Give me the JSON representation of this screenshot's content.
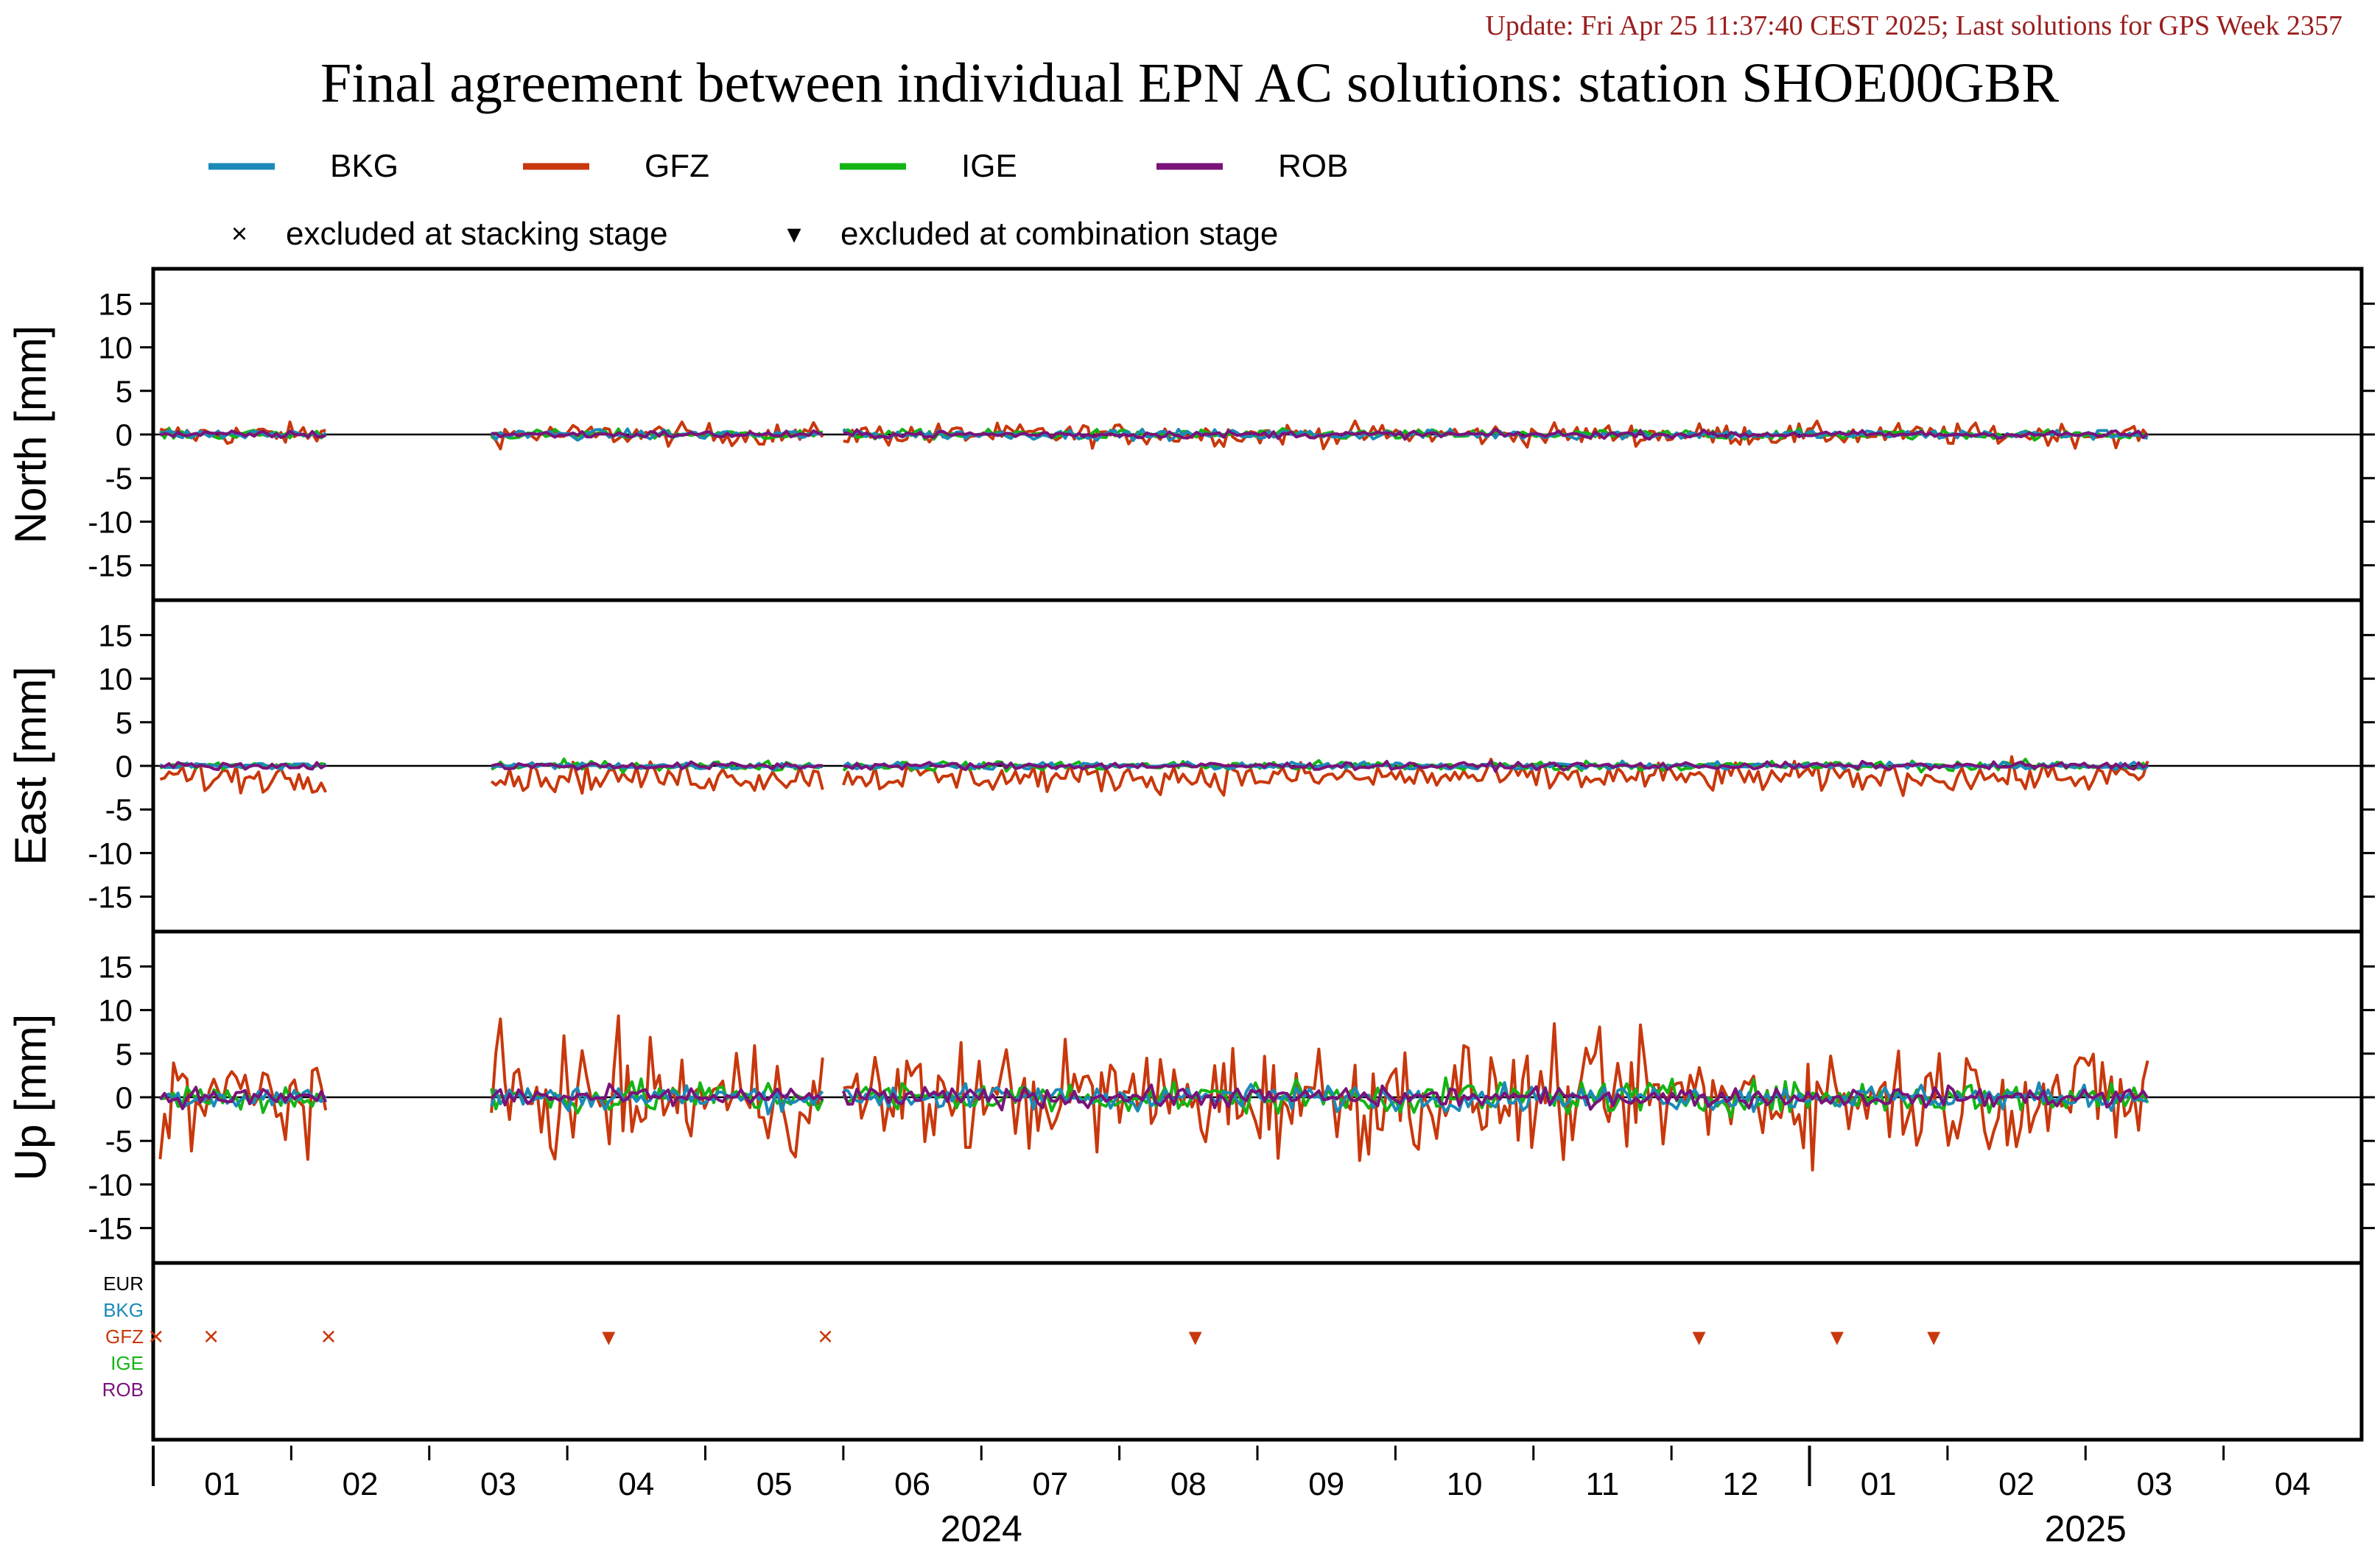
{
  "update_text": "Update: Fri Apr 25 11:37:40 CEST 2025; Last solutions for GPS Week 2357",
  "title": "Final agreement between individual EPN AC solutions: station SHOE00GBR",
  "legend": {
    "series": [
      {
        "name": "BKG",
        "color": "#1b8ab8"
      },
      {
        "name": "GFZ",
        "color": "#c8380c"
      },
      {
        "name": "IGE",
        "color": "#14b414"
      },
      {
        "name": "ROB",
        "color": "#7a127a"
      }
    ],
    "markers": [
      {
        "symbol": "×",
        "label": "excluded at stacking stage"
      },
      {
        "symbol": "▾",
        "label": "excluded at combination stage"
      }
    ]
  },
  "chart_data": {
    "type": "line",
    "x_axis": {
      "month_labels": [
        "01",
        "02",
        "03",
        "04",
        "05",
        "06",
        "07",
        "08",
        "09",
        "10",
        "11",
        "12",
        "01",
        "02",
        "03",
        "04"
      ],
      "year_labels": [
        "2024",
        "2025"
      ],
      "range_months": [
        0,
        16
      ],
      "start": "2024-01"
    },
    "y_ticks": [
      15,
      10,
      5,
      0,
      -5,
      -10,
      -15
    ],
    "ylim": [
      -19,
      19
    ],
    "panels": [
      {
        "ylabel": "North [mm]",
        "amp": {
          "BKG": 0.4,
          "GFZ": 0.9,
          "IGE": 0.4,
          "ROB": 0.3
        }
      },
      {
        "ylabel": "East [mm]",
        "amp": {
          "BKG": 0.3,
          "GFZ": 1.2,
          "IGE": 0.4,
          "ROB": 0.3
        },
        "gfz_bias": -1.3
      },
      {
        "ylabel": "Up [mm]",
        "amp": {
          "BKG": 1.0,
          "GFZ": 4.5,
          "IGE": 1.3,
          "ROB": 0.8
        }
      }
    ],
    "data_segments_months": [
      [
        0.05,
        1.25
      ],
      [
        2.45,
        4.85
      ],
      [
        5.0,
        14.45
      ]
    ],
    "exclusion_panel": {
      "rows": [
        "EUR",
        "BKG",
        "GFZ",
        "IGE",
        "ROB"
      ],
      "row_colors": [
        "#000000",
        "#1b8ab8",
        "#c8380c",
        "#14b414",
        "#7a127a"
      ],
      "markers": [
        {
          "row": "GFZ",
          "symbol": "×",
          "month": 0.02
        },
        {
          "row": "GFZ",
          "symbol": "×",
          "month": 0.42
        },
        {
          "row": "GFZ",
          "symbol": "×",
          "month": 1.27
        },
        {
          "row": "GFZ",
          "symbol": "▾",
          "month": 3.3
        },
        {
          "row": "GFZ",
          "symbol": "×",
          "month": 4.87
        },
        {
          "row": "GFZ",
          "symbol": "▾",
          "month": 7.55
        },
        {
          "row": "GFZ",
          "symbol": "▾",
          "month": 11.2
        },
        {
          "row": "GFZ",
          "symbol": "▾",
          "month": 12.2
        },
        {
          "row": "GFZ",
          "symbol": "▾",
          "month": 12.9
        }
      ]
    }
  }
}
